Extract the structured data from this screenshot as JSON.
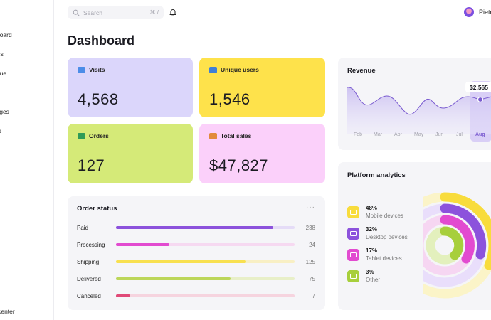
{
  "sidebar": {
    "items": [
      {
        "label": "shboard"
      },
      {
        "label": "lytics"
      },
      {
        "label": "venue"
      },
      {
        "label": "ers"
      },
      {
        "label": "ssages"
      },
      {
        "label": "ings"
      }
    ],
    "help": "p center"
  },
  "topbar": {
    "search_placeholder": "Search",
    "search_shortcut": "⌘ /",
    "username": "Pietr"
  },
  "page_title": "Dashboard",
  "stats": [
    {
      "label": "Visits",
      "value": "4,568",
      "bg": "#dbd6fb",
      "icon": "visits-icon",
      "icon_color": "#4c8de8"
    },
    {
      "label": "Unique users",
      "value": "1,546",
      "bg": "#fee24b",
      "icon": "users-icon",
      "icon_color": "#3f7fd6"
    },
    {
      "label": "Orders",
      "value": "127",
      "bg": "#d5ea78",
      "icon": "orders-icon",
      "icon_color": "#2e9b57"
    },
    {
      "label": "Total sales",
      "value": "$47,827",
      "bg": "#fbd0fa",
      "icon": "sales-icon",
      "icon_color": "#e28a3c"
    }
  ],
  "order_status": {
    "title": "Order status",
    "menu": "···",
    "rows": [
      {
        "name": "Paid",
        "count": "238",
        "fraction": 0.88,
        "color": "#8c52dc",
        "track": "#e5dcf7"
      },
      {
        "name": "Processing",
        "count": "24",
        "fraction": 0.3,
        "color": "#e24bd0",
        "track": "#f6d9f1"
      },
      {
        "name": "Shipping",
        "count": "125",
        "fraction": 0.73,
        "color": "#f8e050",
        "track": "#f8efc4"
      },
      {
        "name": "Delivered",
        "count": "75",
        "fraction": 0.64,
        "color": "#bcd65a",
        "track": "#e8efc8"
      },
      {
        "name": "Canceled",
        "count": "7",
        "fraction": 0.08,
        "color": "#e04a78",
        "track": "#f6d4df"
      }
    ]
  },
  "revenue": {
    "title": "Revenue",
    "highlight_value": "$2,565",
    "months": [
      "Feb",
      "Mar",
      "Apr",
      "May",
      "Jun",
      "Jul",
      "Aug"
    ],
    "active_month": "Aug",
    "line_color": "#7a5bd0"
  },
  "platform": {
    "title": "Platform analytics",
    "items": [
      {
        "pct": "48%",
        "label": "Mobile devices",
        "color": "#f8dc3c"
      },
      {
        "pct": "32%",
        "label": "Desktop devices",
        "color": "#8c52dc"
      },
      {
        "pct": "17%",
        "label": "Tablet devices",
        "color": "#e24bd0"
      },
      {
        "pct": "3%",
        "label": "Other",
        "color": "#a7cf3c"
      }
    ]
  }
}
